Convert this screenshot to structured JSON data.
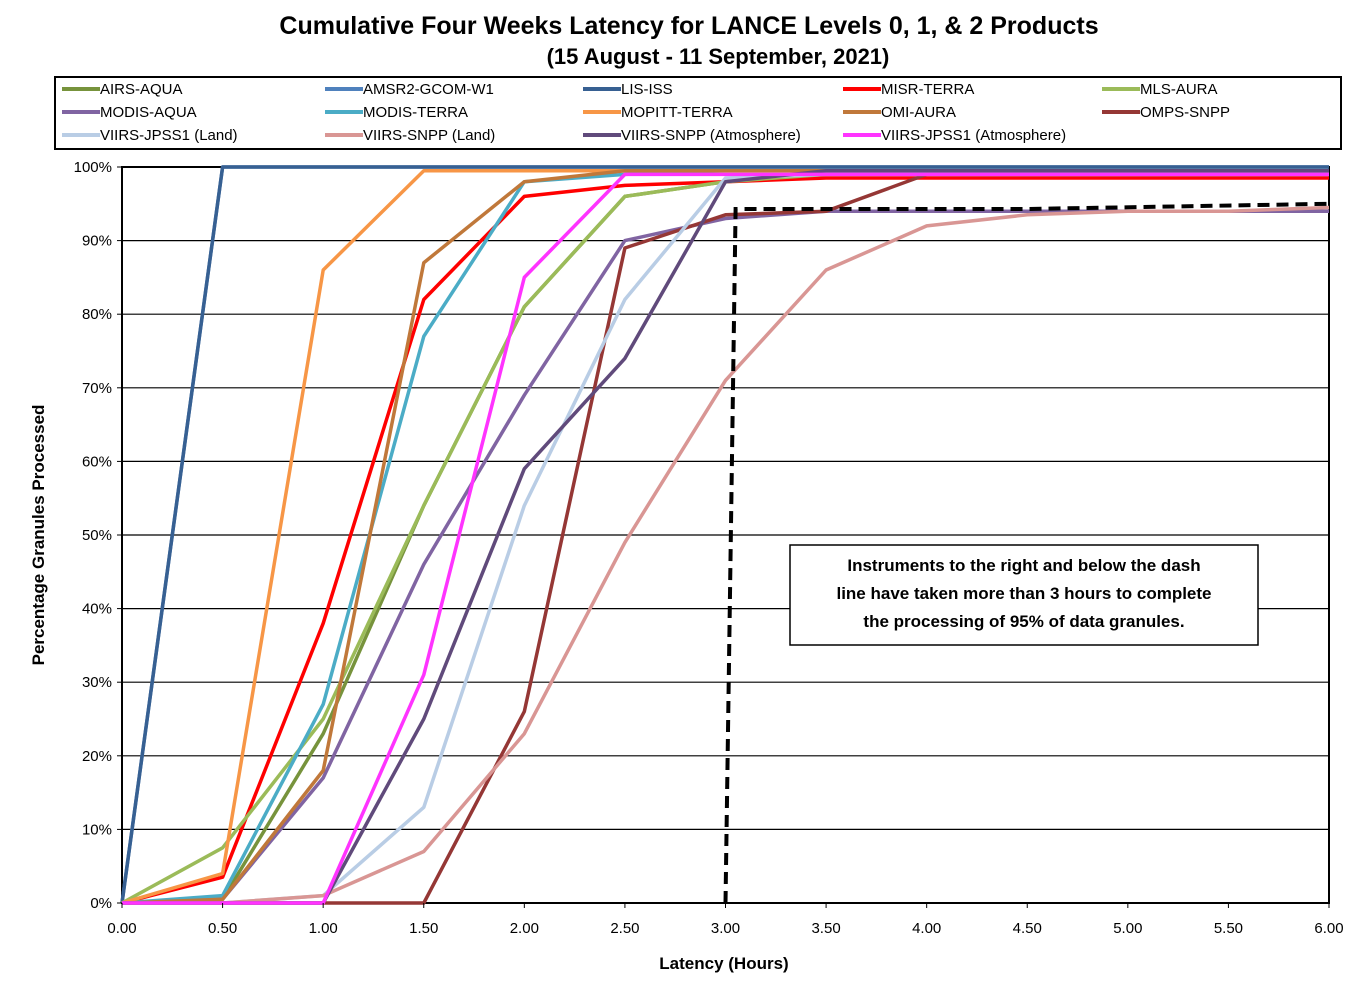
{
  "chart_data": {
    "type": "line",
    "title": "Cumulative Four Weeks Latency  for LANCE Levels 0, 1, & 2 Products",
    "subtitle": "(15  August   -  11  September,  2021)",
    "xlabel": "Latency (Hours)",
    "ylabel": "Percentage Granules Processed",
    "x": [
      0,
      0.5,
      1,
      1.5,
      2,
      2.5,
      3,
      3.5,
      4,
      4.5,
      5,
      5.5,
      6
    ],
    "x_tick_labels": [
      "0.00",
      "0.50",
      "1.00",
      "1.50",
      "2.00",
      "2.50",
      "3.00",
      "3.50",
      "4.00",
      "4.50",
      "5.00",
      "5.50",
      "6.00"
    ],
    "y_tick_labels": [
      "0%",
      "10%",
      "20%",
      "30%",
      "40%",
      "50%",
      "60%",
      "70%",
      "80%",
      "90%",
      "100%"
    ],
    "xlim": [
      0,
      6
    ],
    "ylim": [
      0,
      100
    ],
    "grid": "horizontal",
    "legend_position": "top",
    "series": [
      {
        "name": "AIRS-AQUA",
        "color": "#77933c",
        "values": [
          0,
          0.5,
          23,
          54,
          81,
          96,
          98,
          99,
          99,
          99,
          99,
          99,
          99
        ]
      },
      {
        "name": "AMSR2-GCOM-W1",
        "color": "#4f81bd",
        "values": [
          0,
          100,
          100,
          100,
          100,
          100,
          100,
          100,
          100,
          100,
          100,
          100,
          100
        ]
      },
      {
        "name": "LIS-ISS",
        "color": "#376092",
        "values": [
          0,
          100,
          100,
          100,
          100,
          100,
          100,
          100,
          100,
          100,
          100,
          100,
          100
        ]
      },
      {
        "name": "MISR-TERRA",
        "color": "#ff0000",
        "values": [
          0,
          3.5,
          38,
          82,
          96,
          97.5,
          98,
          98.5,
          98.5,
          98.5,
          98.5,
          98.5,
          98.5
        ]
      },
      {
        "name": "MLS-AURA",
        "color": "#9bbb59",
        "values": [
          0,
          7.5,
          25,
          54,
          81,
          96,
          98,
          99,
          99,
          99,
          99,
          99,
          99
        ]
      },
      {
        "name": "MODIS-AQUA",
        "color": "#8064a2",
        "values": [
          0,
          0.5,
          17,
          46,
          69,
          90,
          93,
          94,
          94,
          94,
          94,
          94,
          94
        ]
      },
      {
        "name": "MODIS-TERRA",
        "color": "#4bacc6",
        "values": [
          0,
          1,
          27,
          77,
          98,
          99,
          99.5,
          99.5,
          99.5,
          99.5,
          99.5,
          99.5,
          99.5
        ]
      },
      {
        "name": "MOPITT-TERRA",
        "color": "#f79646",
        "values": [
          0,
          4,
          86,
          99.5,
          99.5,
          99.5,
          99.5,
          99.5,
          99.5,
          99.5,
          99.5,
          99.5,
          99.5
        ]
      },
      {
        "name": "OMI-AURA",
        "color": "#c0783a",
        "values": [
          0,
          0.5,
          18,
          87,
          98,
          99.5,
          99.5,
          99.5,
          99.5,
          99.5,
          99.5,
          99.5,
          99.5
        ]
      },
      {
        "name": "OMPS-SNPP",
        "color": "#953735",
        "values": [
          0,
          0,
          0,
          0,
          26,
          89,
          93.5,
          94,
          99,
          99,
          99,
          99,
          99
        ]
      },
      {
        "name": "VIIRS-JPSS1 (Land)",
        "color": "#b9cde5",
        "values": [
          0,
          0,
          1,
          13,
          54,
          82,
          98.5,
          99,
          99,
          99,
          99,
          99,
          99
        ]
      },
      {
        "name": "VIIRS-SNPP (Land)",
        "color": "#d99694",
        "values": [
          0,
          0,
          1,
          7,
          23,
          49,
          71,
          86,
          92,
          93.5,
          94,
          94,
          94.5
        ]
      },
      {
        "name": "VIIRS-SNPP (Atmosphere)",
        "color": "#604a7b",
        "values": [
          0,
          0,
          0,
          25,
          59,
          74,
          98,
          99.5,
          99.5,
          99.5,
          99.5,
          99.5,
          99.5
        ]
      },
      {
        "name": "VIIRS-JPSS1 (Atmosphere)",
        "color": "#ff33ff",
        "values": [
          0,
          0,
          0,
          31,
          85,
          99,
          99,
          99,
          99,
          99,
          99,
          99,
          99
        ]
      }
    ],
    "threshold_line": {
      "color": "#000000",
      "points": [
        [
          3.0,
          0
        ],
        [
          3.05,
          94.3
        ],
        [
          4.5,
          94.3
        ],
        [
          6,
          95
        ]
      ]
    },
    "annotation": {
      "lines": [
        "Instruments to the right and below the dash",
        "line have taken more than 3 hours to complete",
        "the processing of 95% of data granules."
      ]
    }
  }
}
